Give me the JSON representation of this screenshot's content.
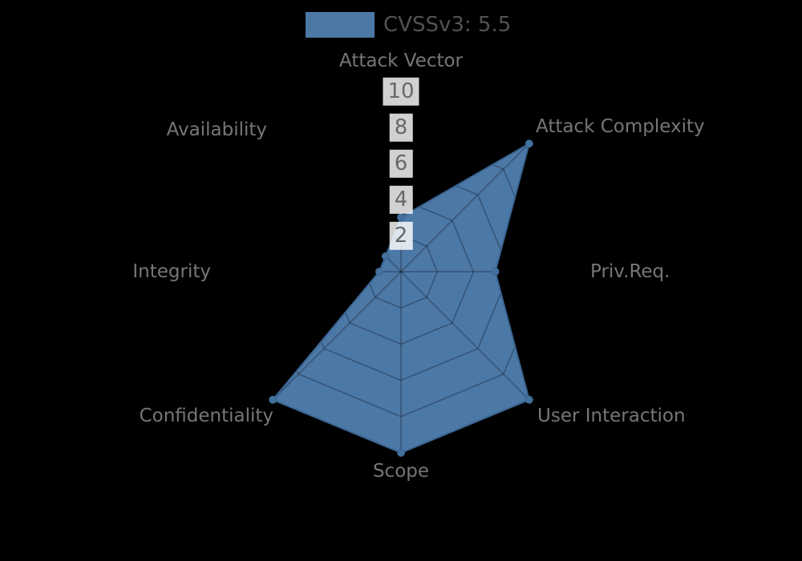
{
  "legend": {
    "label": "CVSSv3: 5.5",
    "swatch_color": "#4c78a6"
  },
  "chart_data": {
    "type": "radar",
    "title": "CVSSv3: 5.5",
    "axes": [
      "Attack Vector",
      "Attack Complexity",
      "Priv.Req.",
      "User Interaction",
      "Scope",
      "Confidentiality",
      "Integrity",
      "Availability"
    ],
    "series": [
      {
        "name": "CVSSv3: 5.5",
        "values": [
          3,
          10,
          5.2,
          10,
          10,
          10,
          1.2,
          1.2
        ],
        "fill_color": "#4c78a6",
        "border_color": "#3b6593",
        "point_color": "#44709c"
      }
    ],
    "scale": {
      "min": 0,
      "max": 10,
      "tick_labels": [
        "10",
        "8",
        "6",
        "4",
        "2"
      ],
      "tick_values": [
        10,
        8,
        6,
        4,
        2
      ],
      "rings": [
        2,
        4,
        6,
        8,
        10
      ]
    },
    "grid": true,
    "grid_color": "rgba(0,0,0,0.3)",
    "legend_position": "top",
    "background_color": "#000000",
    "label_color": "#767676",
    "tick_text_color": "#686868",
    "tick_box_color": "rgba(255,255,255,0.82)"
  }
}
